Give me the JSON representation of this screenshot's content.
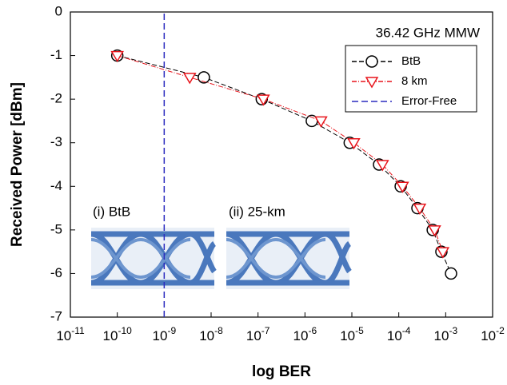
{
  "chart_data": {
    "type": "line",
    "annotations": [
      "36.42 GHz MMW",
      "(i) BtB",
      "(ii) 25-km"
    ],
    "xlabel": "log BER",
    "ylabel": "Received Power [dBm]",
    "xscale": "log",
    "xlim": [
      1e-11,
      0.01
    ],
    "xticks": [
      {
        "value": 1e-11,
        "label": "10-11"
      },
      {
        "value": 1e-10,
        "label": "10-10"
      },
      {
        "value": 1e-09,
        "label": "10-9"
      },
      {
        "value": 1e-08,
        "label": "10-8"
      },
      {
        "value": 1e-07,
        "label": "10-7"
      },
      {
        "value": 1e-06,
        "label": "10-6"
      },
      {
        "value": 1e-05,
        "label": "10-5"
      },
      {
        "value": 0.0001,
        "label": "10-4"
      },
      {
        "value": 0.001,
        "label": "10-3"
      },
      {
        "value": 0.01,
        "label": "10-2"
      }
    ],
    "ylim": [
      -7,
      0
    ],
    "yticks": [
      0,
      -1,
      -2,
      -3,
      -4,
      -5,
      -6,
      -7
    ],
    "legend": "upper right",
    "series": [
      {
        "name": "BtB",
        "color": "#000000",
        "marker": "circle",
        "dash": "6,3",
        "x": [
          1e-10,
          7e-09,
          1.2e-07,
          1.4e-06,
          9e-06,
          3.8e-05,
          0.00011,
          0.00025,
          0.00053,
          0.00081,
          0.0013
        ],
        "values": [
          -1,
          -1.5,
          -2,
          -2.5,
          -3,
          -3.5,
          -4,
          -4.5,
          -5,
          -5.5,
          -6
        ]
      },
      {
        "name": "8 km",
        "color": "#e8141b",
        "marker": "triangle-down",
        "dash": "6,2,1,2",
        "x": [
          1e-10,
          3.5e-09,
          1.3e-07,
          2.2e-06,
          1.1e-05,
          4.5e-05,
          0.00012,
          0.00028,
          0.00058,
          0.00087
        ],
        "values": [
          -1,
          -1.5,
          -2,
          -2.5,
          -3,
          -3.5,
          -4,
          -4.5,
          -5,
          -5.5
        ]
      },
      {
        "name": "Error-Free",
        "color": "#2b2bbf",
        "marker": "none",
        "dash": "8,4",
        "x": [
          1e-09,
          1e-09
        ],
        "values": [
          -7,
          0
        ]
      }
    ]
  }
}
